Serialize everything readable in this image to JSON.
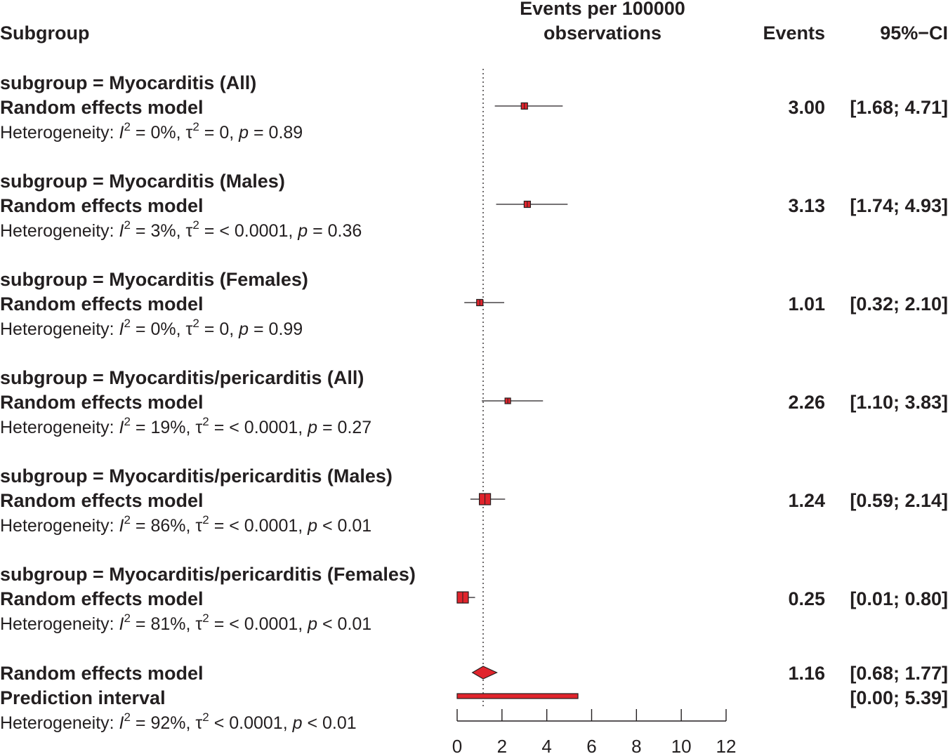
{
  "chart_data": {
    "type": "forest",
    "headers": {
      "subgroup": "Subgroup",
      "axis_title_line1": "Events per 100000",
      "axis_title_line2": "observations",
      "events": "Events",
      "ci": "95%−CI"
    },
    "x_ticks": [
      0,
      2,
      4,
      6,
      8,
      10,
      12
    ],
    "xlim": [
      0,
      12
    ],
    "reference_line": 1.16,
    "colors": {
      "marker": "#e0242c",
      "outline": "#231f20"
    },
    "subgroups": [
      {
        "label": "subgroup = Myocarditis (All)",
        "model": "Random effects model",
        "estimate": 3.0,
        "lower": 1.68,
        "upper": 4.71,
        "events_text": "3.00",
        "ci_text": "[1.68;  4.71]",
        "weight": "small",
        "het_prefix": "Heterogeneity: ",
        "i2": "I",
        "i2_value": " = 0%, ",
        "tau": "τ",
        "tau_value": " = 0, ",
        "p": "p",
        "p_value": " = 0.89"
      },
      {
        "label": "subgroup = Myocarditis (Males)",
        "model": "Random effects model",
        "estimate": 3.13,
        "lower": 1.74,
        "upper": 4.93,
        "events_text": "3.13",
        "ci_text": "[1.74;  4.93]",
        "weight": "small",
        "het_prefix": "Heterogeneity: ",
        "i2": "I",
        "i2_value": " = 3%, ",
        "tau": "τ",
        "tau_value": " = < 0.0001, ",
        "p": "p",
        "p_value": " = 0.36"
      },
      {
        "label": "subgroup = Myocarditis (Females)",
        "model": "Random effects model",
        "estimate": 1.01,
        "lower": 0.32,
        "upper": 2.1,
        "events_text": "1.01",
        "ci_text": "[0.32;  2.10]",
        "weight": "small",
        "het_prefix": "Heterogeneity: ",
        "i2": "I",
        "i2_value": " = 0%, ",
        "tau": "τ",
        "tau_value": " = 0, ",
        "p": "p",
        "p_value": " = 0.99"
      },
      {
        "label": "subgroup = Myocarditis/pericarditis (All)",
        "model": "Random effects model",
        "estimate": 2.26,
        "lower": 1.1,
        "upper": 3.83,
        "events_text": "2.26",
        "ci_text": "[1.10;  3.83]",
        "weight": "tiny",
        "het_prefix": "Heterogeneity: ",
        "i2": "I",
        "i2_value": " = 19%, ",
        "tau": "τ",
        "tau_value": " = < 0.0001, ",
        "p": "p",
        "p_value": " = 0.27"
      },
      {
        "label": "subgroup = Myocarditis/pericarditis (Males)",
        "model": "Random effects model",
        "estimate": 1.24,
        "lower": 0.59,
        "upper": 2.14,
        "events_text": "1.24",
        "ci_text": "[0.59;  2.14]",
        "weight": "large",
        "het_prefix": "Heterogeneity: ",
        "i2": "I",
        "i2_value": " = 86%, ",
        "tau": "τ",
        "tau_value": " = < 0.0001, ",
        "p": "p",
        "p_value": " < 0.01"
      },
      {
        "label": "subgroup = Myocarditis/pericarditis (Females)",
        "model": "Random effects model",
        "estimate": 0.25,
        "lower": 0.01,
        "upper": 0.8,
        "events_text": "0.25",
        "ci_text": "[0.01;  0.80]",
        "weight": "large",
        "het_prefix": "Heterogeneity: ",
        "i2": "I",
        "i2_value": " = 81%, ",
        "tau": "τ",
        "tau_value": " = < 0.0001, ",
        "p": "p",
        "p_value": " < 0.01"
      }
    ],
    "overall": {
      "model": "Random effects model",
      "estimate": 1.16,
      "lower": 0.68,
      "upper": 1.77,
      "events_text": "1.16",
      "ci_text": "[0.68;  1.77]",
      "prediction_label": "Prediction interval",
      "prediction_lower": 0.0,
      "prediction_upper": 5.39,
      "prediction_ci_text": "[0.00;  5.39]",
      "het_prefix": "Heterogeneity: ",
      "i2": "I",
      "i2_value": " = 92%, ",
      "tau": "τ",
      "tau_value": " < 0.0001, ",
      "p": "p",
      "p_value": " < 0.01"
    },
    "superscript": "2"
  }
}
